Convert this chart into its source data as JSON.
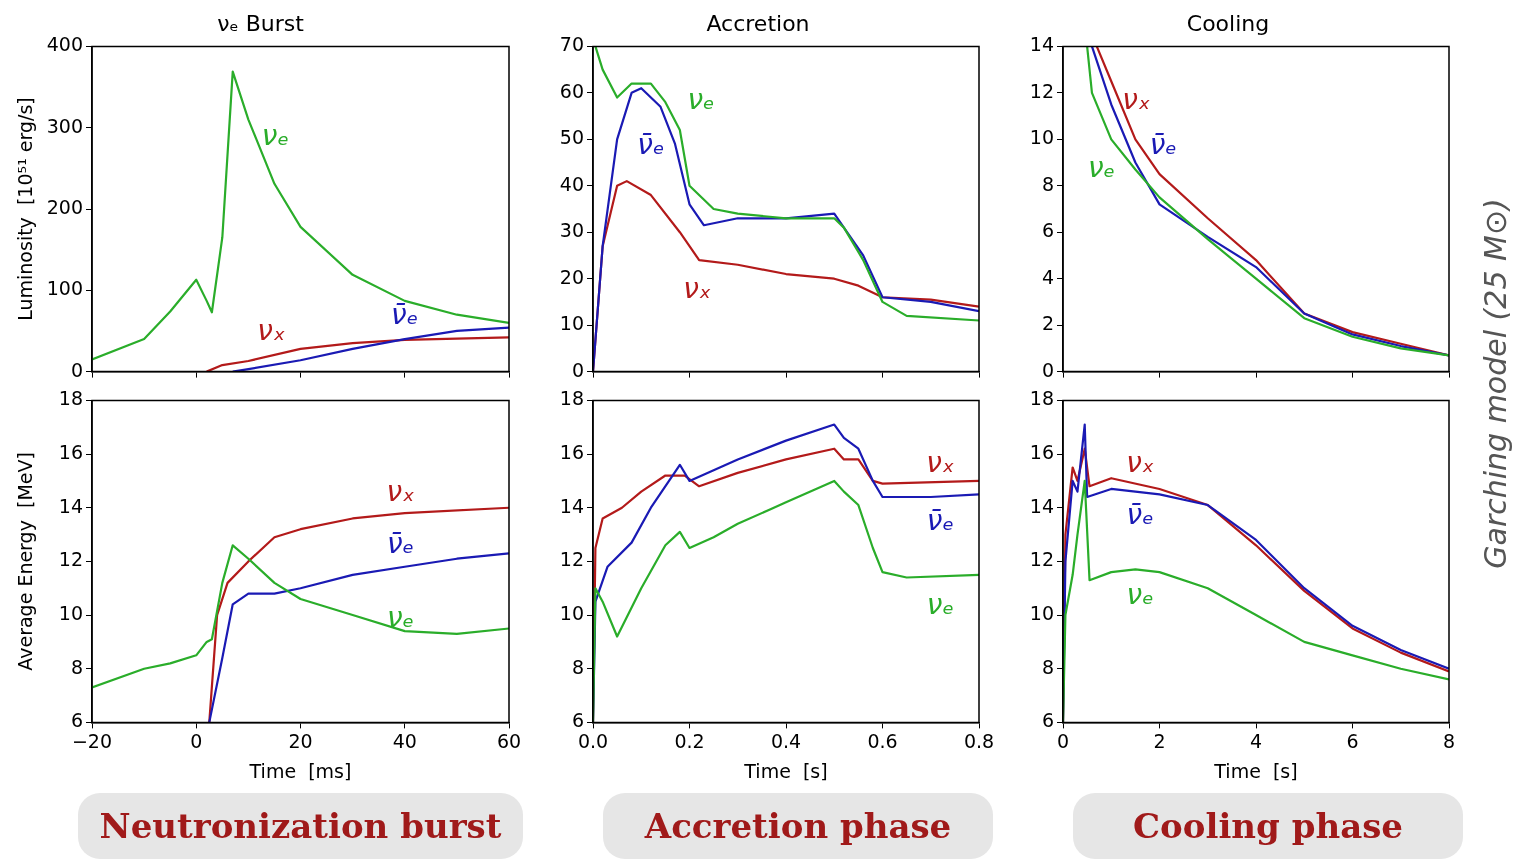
{
  "chart_data": [
    {
      "type": "line",
      "title": "νₑ Burst",
      "ylabel": "Luminosity  [10⁵¹ erg/s]",
      "xlim": [
        -20,
        60
      ],
      "xticks": [
        -20,
        0,
        20,
        40,
        60
      ],
      "ylim": [
        0,
        400
      ],
      "yticks": [
        0,
        100,
        200,
        300,
        400
      ],
      "tick_labels": "y",
      "legend": false,
      "marker": "none",
      "line_style": "solid",
      "series": [
        {
          "name": "νₑ",
          "color": "#2aad2a",
          "x": [
            -20,
            -10,
            -5,
            0,
            2,
            3,
            5,
            7,
            10,
            15,
            20,
            30,
            40,
            50,
            60
          ],
          "values": [
            15,
            40,
            74,
            113,
            87,
            73,
            165,
            369,
            310,
            231,
            178,
            119,
            87,
            70,
            60
          ]
        },
        {
          "name": "ν̄ₑ",
          "color": "#1a1ab4",
          "x": [
            7,
            10,
            20,
            30,
            40,
            50,
            60
          ],
          "values": [
            0,
            3,
            14,
            28,
            40,
            50,
            54
          ]
        },
        {
          "name": "νₓ",
          "color": "#b31a1a",
          "x": [
            2,
            5,
            10,
            20,
            30,
            40,
            60
          ],
          "values": [
            0,
            8,
            13,
            28,
            35,
            39,
            42
          ]
        }
      ]
    },
    {
      "type": "line",
      "title": "Accretion",
      "xlim": [
        0,
        0.8
      ],
      "xticks": [
        0,
        0.2,
        0.4,
        0.6,
        0.8
      ],
      "ylim": [
        0,
        70
      ],
      "yticks": [
        0,
        10,
        20,
        30,
        40,
        50,
        60,
        70
      ],
      "tick_labels": "y",
      "legend": false,
      "marker": "none",
      "line_style": "solid",
      "series": [
        {
          "name": "νₑ",
          "color": "#2aad2a",
          "x": [
            0.005,
            0.02,
            0.05,
            0.08,
            0.12,
            0.15,
            0.18,
            0.2,
            0.25,
            0.3,
            0.4,
            0.5,
            0.52,
            0.56,
            0.6,
            0.65,
            0.8
          ],
          "values": [
            70,
            65,
            59,
            62,
            62,
            58,
            52,
            40,
            35,
            34,
            33,
            33,
            31,
            24,
            15,
            12,
            11
          ]
        },
        {
          "name": "ν̄ₑ",
          "color": "#1a1ab4",
          "x": [
            0,
            0.02,
            0.05,
            0.08,
            0.1,
            0.14,
            0.17,
            0.2,
            0.23,
            0.3,
            0.4,
            0.5,
            0.52,
            0.56,
            0.6,
            0.7,
            0.8
          ],
          "values": [
            0,
            27,
            50,
            60,
            61,
            57,
            49,
            36,
            31.5,
            33,
            33,
            34,
            31,
            25,
            16,
            15,
            13
          ]
        },
        {
          "name": "νₓ",
          "color": "#b31a1a",
          "x": [
            0,
            0.02,
            0.05,
            0.07,
            0.12,
            0.18,
            0.22,
            0.3,
            0.4,
            0.5,
            0.55,
            0.6,
            0.7,
            0.8
          ],
          "values": [
            0,
            27,
            40,
            41,
            38,
            30,
            24,
            23,
            21,
            20,
            18.5,
            16,
            15.5,
            14
          ]
        }
      ]
    },
    {
      "type": "line",
      "title": "Cooling",
      "xlim": [
        0,
        8
      ],
      "xticks": [
        0,
        2,
        4,
        6,
        8
      ],
      "ylim": [
        0,
        14
      ],
      "yticks": [
        0,
        2,
        4,
        6,
        8,
        10,
        12,
        14
      ],
      "tick_labels": "y",
      "legend": false,
      "marker": "none",
      "line_style": "solid",
      "series": [
        {
          "name": "νₑ",
          "color": "#2aad2a",
          "x": [
            0.5,
            0.6,
            0.8,
            1,
            1.5,
            2,
            3,
            4,
            5,
            6,
            7,
            8
          ],
          "values": [
            14,
            12,
            11,
            10,
            8.7,
            7.5,
            5.7,
            4,
            2.3,
            1.5,
            1,
            0.7
          ]
        },
        {
          "name": "ν̄ₑ",
          "color": "#1a1ab4",
          "x": [
            0.6,
            1,
            1.5,
            2,
            3,
            4,
            5,
            6,
            7,
            8
          ],
          "values": [
            14,
            11.5,
            9,
            7.2,
            5.8,
            4.5,
            2.5,
            1.6,
            1.1,
            0.7
          ]
        },
        {
          "name": "νₓ",
          "color": "#b31a1a",
          "x": [
            0.7,
            1,
            1.5,
            2,
            3,
            4,
            5,
            6,
            7,
            8
          ],
          "values": [
            14,
            12.5,
            10,
            8.5,
            6.6,
            4.8,
            2.5,
            1.7,
            1.2,
            0.7
          ]
        }
      ]
    },
    {
      "type": "line",
      "ylabel": "Average Energy  [MeV]",
      "xlabel": "Time  [ms]",
      "annotations": [
        "Neutronization burst"
      ],
      "xlim": [
        -20,
        60
      ],
      "xticks": [
        {
          "value": -20,
          "label": "−20"
        },
        0,
        20,
        40,
        60
      ],
      "ylim": [
        6,
        18
      ],
      "yticks": [
        6,
        8,
        10,
        12,
        14,
        16,
        18
      ],
      "legend": false,
      "marker": "none",
      "line_style": "solid",
      "series": [
        {
          "name": "νₑ",
          "color": "#2aad2a",
          "x": [
            -20,
            -10,
            -5,
            0,
            2,
            3,
            5,
            7,
            10,
            15,
            20,
            30,
            40,
            50,
            60
          ],
          "values": [
            7.3,
            8,
            8.2,
            8.5,
            9,
            9.1,
            11.2,
            12.6,
            12.1,
            11.2,
            10.6,
            10,
            9.4,
            9.3,
            9.5
          ]
        },
        {
          "name": "ν̄ₑ",
          "color": "#1a1ab4",
          "x": [
            2.5,
            5,
            7,
            10,
            15,
            20,
            30,
            40,
            50,
            60
          ],
          "values": [
            6,
            8.4,
            10.4,
            10.8,
            10.8,
            11,
            11.5,
            11.8,
            12.1,
            12.3
          ]
        },
        {
          "name": "νₓ",
          "color": "#b31a1a",
          "x": [
            2.5,
            4,
            6,
            10,
            15,
            20,
            30,
            40,
            60
          ],
          "values": [
            6,
            10,
            11.2,
            12,
            12.9,
            13.2,
            13.6,
            13.8,
            14
          ]
        }
      ]
    },
    {
      "type": "line",
      "xlabel": "Time  [s]",
      "annotations": [
        "Accretion phase"
      ],
      "xlim": [
        0,
        0.8
      ],
      "xticks": [
        {
          "value": 0,
          "label": "0.0"
        },
        {
          "value": 0.2,
          "label": "0.2"
        },
        {
          "value": 0.4,
          "label": "0.4"
        },
        {
          "value": 0.6,
          "label": "0.6"
        },
        {
          "value": 0.8,
          "label": "0.8"
        }
      ],
      "ylim": [
        6,
        18
      ],
      "yticks": [
        6,
        8,
        10,
        12,
        14,
        16,
        18
      ],
      "legend": false,
      "marker": "none",
      "line_style": "solid",
      "series": [
        {
          "name": "νₑ",
          "color": "#2aad2a",
          "x": [
            0,
            0.005,
            0.02,
            0.05,
            0.1,
            0.15,
            0.18,
            0.2,
            0.25,
            0.3,
            0.4,
            0.5,
            0.52,
            0.55,
            0.58,
            0.6,
            0.65,
            0.8
          ],
          "values": [
            6,
            11,
            10.5,
            9.2,
            11,
            12.6,
            13.1,
            12.5,
            12.9,
            13.4,
            14.2,
            15,
            14.6,
            14.1,
            12.5,
            11.6,
            11.4,
            11.5
          ]
        },
        {
          "name": "ν̄ₑ",
          "color": "#1a1ab4",
          "x": [
            0,
            0.005,
            0.03,
            0.08,
            0.12,
            0.18,
            0.2,
            0.25,
            0.3,
            0.4,
            0.5,
            0.52,
            0.55,
            0.58,
            0.6,
            0.7,
            0.8
          ],
          "values": [
            6,
            10.5,
            11.8,
            12.7,
            14,
            15.6,
            15,
            15.4,
            15.8,
            16.5,
            17.1,
            16.6,
            16.2,
            15,
            14.4,
            14.4,
            14.5
          ]
        },
        {
          "name": "νₓ",
          "color": "#b31a1a",
          "x": [
            0,
            0.005,
            0.02,
            0.06,
            0.1,
            0.15,
            0.19,
            0.22,
            0.3,
            0.4,
            0.5,
            0.52,
            0.55,
            0.58,
            0.6,
            0.8
          ],
          "values": [
            6,
            12.5,
            13.6,
            14,
            14.6,
            15.2,
            15.2,
            14.8,
            15.3,
            15.8,
            16.2,
            15.8,
            15.8,
            15,
            14.9,
            15
          ]
        }
      ]
    },
    {
      "type": "line",
      "xlabel": "Time  [s]",
      "annotations": [
        "Cooling phase",
        "Garching model (25 M⊙)"
      ],
      "xlim": [
        0,
        8
      ],
      "xticks": [
        0,
        2,
        4,
        6,
        8
      ],
      "ylim": [
        6,
        18
      ],
      "yticks": [
        6,
        8,
        10,
        12,
        14,
        16,
        18
      ],
      "legend": false,
      "marker": "none",
      "line_style": "solid",
      "series": [
        {
          "name": "νₑ",
          "color": "#2aad2a",
          "x": [
            0,
            0.05,
            0.2,
            0.3,
            0.45,
            0.55,
            1,
            1.5,
            2,
            3,
            4,
            5,
            6,
            7,
            8
          ],
          "values": [
            6,
            10,
            11.5,
            13,
            15,
            11.3,
            11.6,
            11.7,
            11.6,
            11,
            10,
            9,
            8.5,
            8,
            7.6
          ]
        },
        {
          "name": "ν̄ₑ",
          "color": "#1a1ab4",
          "x": [
            0,
            0.05,
            0.2,
            0.3,
            0.45,
            0.5,
            1,
            2,
            3,
            4,
            5,
            6,
            7,
            8
          ],
          "values": [
            6,
            12,
            15,
            14.6,
            17.1,
            14.4,
            14.7,
            14.5,
            14.1,
            12.8,
            11,
            9.6,
            8.7,
            8
          ]
        },
        {
          "name": "νₓ",
          "color": "#b31a1a",
          "x": [
            0,
            0.05,
            0.2,
            0.3,
            0.45,
            0.55,
            1,
            2,
            3,
            4,
            5,
            6,
            7,
            8
          ],
          "values": [
            6,
            13,
            15.5,
            15,
            16.2,
            14.8,
            15.1,
            14.7,
            14.1,
            12.6,
            10.9,
            9.5,
            8.6,
            7.9
          ]
        }
      ]
    }
  ]
}
